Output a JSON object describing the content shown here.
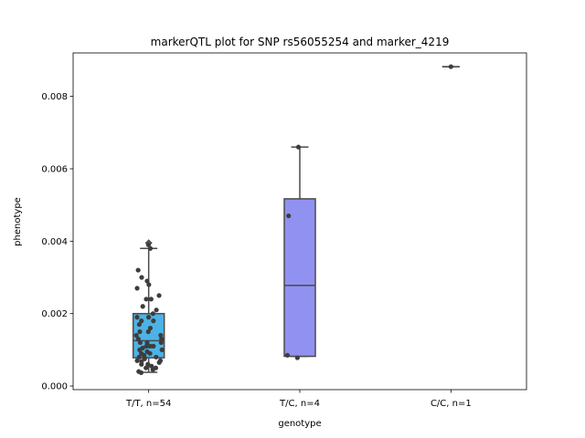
{
  "chart_data": {
    "type": "box",
    "title": "markerQTL plot for SNP rs56055254 and marker_4219",
    "xlabel": "genotype",
    "ylabel": "phenotype",
    "ylim": [
      -0.0001,
      0.0092
    ],
    "yticks": [
      "0.000",
      "0.002",
      "0.004",
      "0.006",
      "0.008"
    ],
    "ytick_values": [
      0,
      0.002,
      0.004,
      0.006,
      0.008
    ],
    "grid": false,
    "categories": [
      "T/T, n=54",
      "T/C, n=4",
      "C/C, n=1"
    ],
    "boxes": [
      {
        "category": "T/T, n=54",
        "color": "#4cb3e6",
        "q1": 0.00078,
        "median": 0.00125,
        "q3": 0.002,
        "whisker_low": 0.00038,
        "whisker_high": 0.0038,
        "outliers": [
          0.00395
        ]
      },
      {
        "category": "T/C, n=4",
        "color": "#9191f2",
        "q1": 0.00082,
        "median": 0.00278,
        "q3": 0.00517,
        "whisker_low": 0.00082,
        "whisker_high": 0.0066,
        "outliers": []
      },
      {
        "category": "C/C, n=1",
        "color": "#b07ad9",
        "q1": 0.00882,
        "median": 0.00882,
        "q3": 0.00882,
        "whisker_low": 0.00882,
        "whisker_high": 0.00882,
        "outliers": []
      }
    ],
    "points": [
      {
        "category": "T/T, n=54",
        "values": [
          0.0039,
          0.0038,
          0.0032,
          0.003,
          0.0029,
          0.0028,
          0.0027,
          0.0025,
          0.0024,
          0.0024,
          0.0022,
          0.0021,
          0.002,
          0.0019,
          0.0019,
          0.0018,
          0.0018,
          0.0017,
          0.0016,
          0.0015,
          0.0015,
          0.0014,
          0.0014,
          0.0013,
          0.0013,
          0.0012,
          0.0012,
          0.0012,
          0.0011,
          0.0011,
          0.0011,
          0.00105,
          0.001,
          0.001,
          0.00095,
          0.0009,
          0.0009,
          0.00085,
          0.0008,
          0.0008,
          0.00078,
          0.00075,
          0.0007,
          0.0007,
          0.00068,
          0.00065,
          0.0006,
          0.0006,
          0.00055,
          0.0005,
          0.0005,
          0.00045,
          0.0004,
          0.00037
        ]
      },
      {
        "category": "T/C, n=4",
        "values": [
          0.0066,
          0.0047,
          0.00085,
          0.00078
        ]
      },
      {
        "category": "C/C, n=1",
        "values": [
          0.00882
        ]
      }
    ]
  }
}
